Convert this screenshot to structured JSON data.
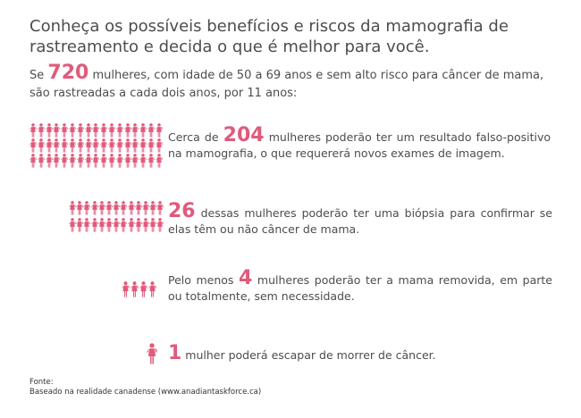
{
  "title": "Conheça os possíveis benefícios e riscos da mamografia de rastreamento e decida o que é melhor para você.",
  "intro": {
    "prefix": "Se ",
    "number": "720",
    "suffix": " mulheres, com idade de 50 a 69 anos e sem alto risco para câncer de mama, são rastreadas a cada dois anos, por 11 anos:"
  },
  "rows": [
    {
      "prefix": "Cerca de ",
      "number": "204",
      "text": " mulheres poderão ter um resultado falso-positivo na mamografia, o que requererá novos exames de imagem."
    },
    {
      "prefix": "",
      "number": "26",
      "text": " dessas mulheres poderão ter uma biópsia para confirmar se elas têm ou não câncer de mama."
    },
    {
      "prefix": "Pelo menos ",
      "number": "4",
      "text": " mulheres poderão ter a mama removida, em parte ou totalmente, sem necessidade."
    },
    {
      "prefix": "",
      "number": "1",
      "text": " mulher poderá escapar de morrer de câncer."
    }
  ],
  "source": {
    "label": "Fonte:",
    "text": "Baseado na realidade canadense (www.anadiantaskforce.ca)"
  },
  "colors": {
    "accent": "#e05a7b",
    "text": "#4d4d4d"
  },
  "icon": "woman-figure-icon"
}
